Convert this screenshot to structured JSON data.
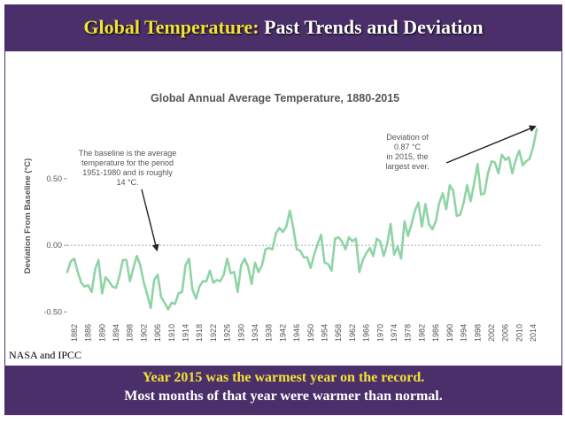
{
  "slide": {
    "title_accent": "Global Temperature:",
    "title_rest": "Past Trends and Deviation",
    "credit": "NASA and IPCC",
    "bottom_line1": "Year 2015 was the warmest year on the record.",
    "bottom_line2": "Most months of that year were warmer than normal."
  },
  "colors": {
    "frame": "#4b2f6b",
    "accent": "#f2e234",
    "line": "#8fd4a5",
    "text": "#555555"
  },
  "chart_data": {
    "type": "line",
    "title": "Global Annual Average Temperature, 1880-2015",
    "xlabel": "",
    "ylabel": "Deviation From Baseline (°C)",
    "ylim": [
      -0.55,
      0.95
    ],
    "yticks": [
      -0.5,
      0.0,
      0.5
    ],
    "ytick_labels": [
      "-0.50",
      "0.00",
      "0.50"
    ],
    "baseline": 0.0,
    "xlim": [
      1880,
      2015
    ],
    "xtick_labels": [
      "1882",
      "1886",
      "1890",
      "1894",
      "1898",
      "1902",
      "1906",
      "1910",
      "1914",
      "1918",
      "1922",
      "1926",
      "1930",
      "1934",
      "1938",
      "1942",
      "1946",
      "1950",
      "1954",
      "1958",
      "1962",
      "1966",
      "1970",
      "1974",
      "1978",
      "1982",
      "1986",
      "1990",
      "1994",
      "1998",
      "2002",
      "2006",
      "2010",
      "2014"
    ],
    "annotations": [
      {
        "lines": [
          "The baseline is the average",
          "temperature for the period",
          "1951-1980 and is roughly",
          "14 °C."
        ],
        "arrow_to": [
          1905,
          -0.06
        ]
      },
      {
        "lines": [
          "Deviation of",
          "0.87 °C",
          "in 2015, the",
          "largest ever."
        ],
        "arrow_to": [
          2015,
          0.87
        ]
      }
    ],
    "series": [
      {
        "name": "Deviation",
        "x": [
          1880,
          1881,
          1882,
          1883,
          1884,
          1885,
          1886,
          1887,
          1888,
          1889,
          1890,
          1891,
          1892,
          1893,
          1894,
          1895,
          1896,
          1897,
          1898,
          1899,
          1900,
          1901,
          1902,
          1903,
          1904,
          1905,
          1906,
          1907,
          1908,
          1909,
          1910,
          1911,
          1912,
          1913,
          1914,
          1915,
          1916,
          1917,
          1918,
          1919,
          1920,
          1921,
          1922,
          1923,
          1924,
          1925,
          1926,
          1927,
          1928,
          1929,
          1930,
          1931,
          1932,
          1933,
          1934,
          1935,
          1936,
          1937,
          1938,
          1939,
          1940,
          1941,
          1942,
          1943,
          1944,
          1945,
          1946,
          1947,
          1948,
          1949,
          1950,
          1951,
          1952,
          1953,
          1954,
          1955,
          1956,
          1957,
          1958,
          1959,
          1960,
          1961,
          1962,
          1963,
          1964,
          1965,
          1966,
          1967,
          1968,
          1969,
          1970,
          1971,
          1972,
          1973,
          1974,
          1975,
          1976,
          1977,
          1978,
          1979,
          1980,
          1981,
          1982,
          1983,
          1984,
          1985,
          1986,
          1987,
          1988,
          1989,
          1990,
          1991,
          1992,
          1993,
          1994,
          1995,
          1996,
          1997,
          1998,
          1999,
          2000,
          2001,
          2002,
          2003,
          2004,
          2005,
          2006,
          2007,
          2008,
          2009,
          2010,
          2011,
          2012,
          2013,
          2014,
          2015
        ],
        "values": [
          -0.2,
          -0.12,
          -0.1,
          -0.2,
          -0.28,
          -0.31,
          -0.3,
          -0.35,
          -0.18,
          -0.11,
          -0.36,
          -0.24,
          -0.27,
          -0.31,
          -0.32,
          -0.23,
          -0.11,
          -0.11,
          -0.27,
          -0.17,
          -0.08,
          -0.15,
          -0.28,
          -0.37,
          -0.47,
          -0.26,
          -0.22,
          -0.39,
          -0.43,
          -0.48,
          -0.43,
          -0.44,
          -0.36,
          -0.35,
          -0.15,
          -0.1,
          -0.33,
          -0.4,
          -0.31,
          -0.27,
          -0.27,
          -0.19,
          -0.28,
          -0.26,
          -0.27,
          -0.22,
          -0.1,
          -0.21,
          -0.2,
          -0.35,
          -0.15,
          -0.1,
          -0.16,
          -0.29,
          -0.13,
          -0.2,
          -0.15,
          -0.03,
          -0.02,
          -0.03,
          0.09,
          0.13,
          0.1,
          0.14,
          0.26,
          0.13,
          -0.03,
          -0.04,
          -0.09,
          -0.09,
          -0.17,
          -0.07,
          0.01,
          0.08,
          -0.13,
          -0.14,
          -0.19,
          0.05,
          0.06,
          0.03,
          -0.03,
          0.06,
          0.03,
          0.05,
          -0.2,
          -0.11,
          -0.06,
          -0.02,
          -0.08,
          0.05,
          0.03,
          -0.08,
          0.01,
          0.16,
          -0.07,
          -0.01,
          -0.1,
          0.18,
          0.07,
          0.16,
          0.26,
          0.32,
          0.14,
          0.31,
          0.16,
          0.12,
          0.18,
          0.32,
          0.39,
          0.27,
          0.45,
          0.41,
          0.22,
          0.23,
          0.32,
          0.45,
          0.33,
          0.46,
          0.61,
          0.38,
          0.39,
          0.54,
          0.63,
          0.62,
          0.54,
          0.68,
          0.64,
          0.66,
          0.54,
          0.64,
          0.71,
          0.6,
          0.63,
          0.65,
          0.74,
          0.87
        ]
      }
    ]
  }
}
